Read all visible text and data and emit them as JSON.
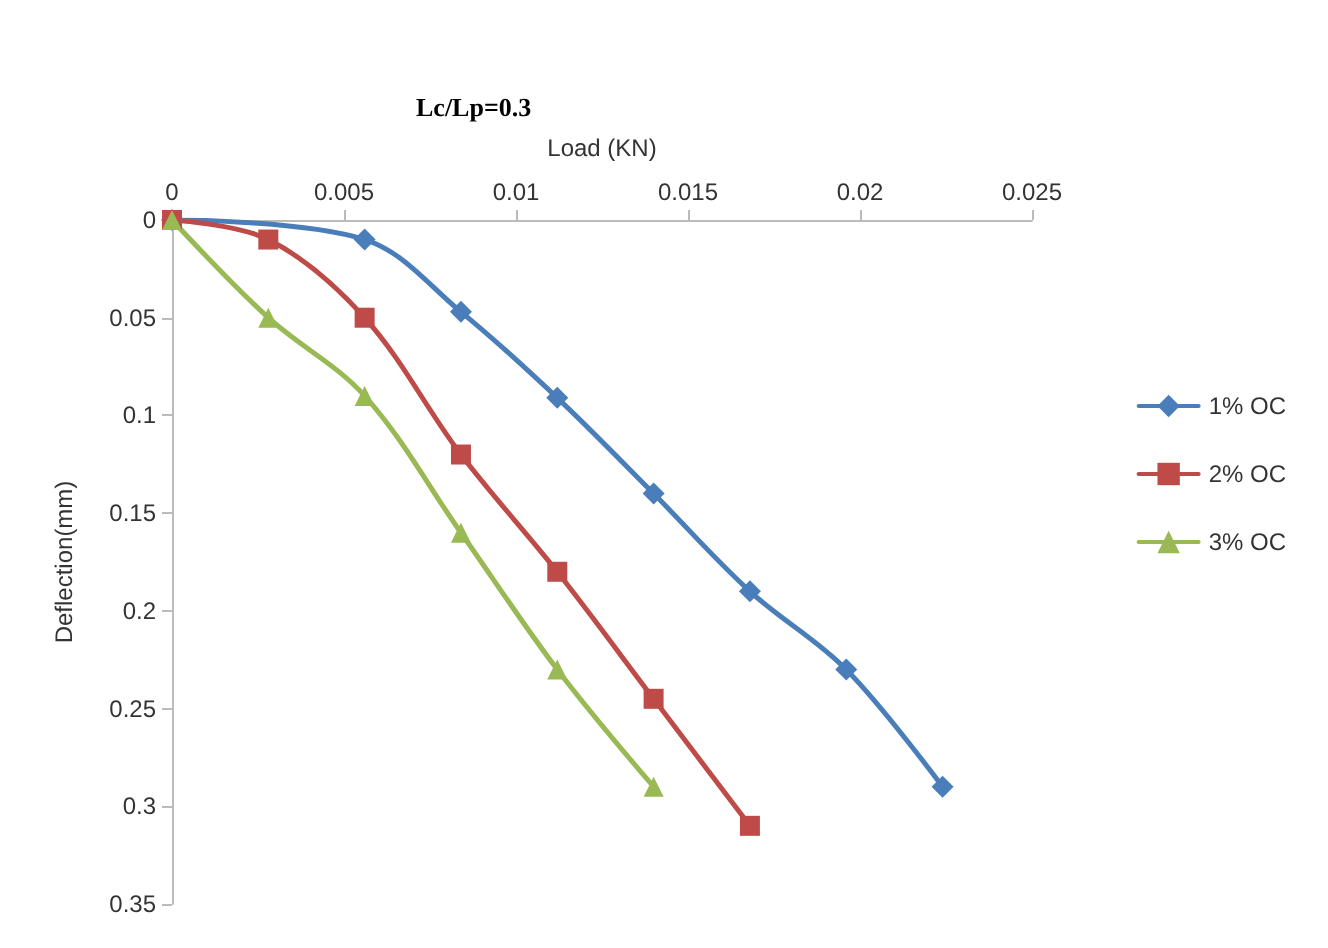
{
  "chart_data": {
    "type": "line",
    "title": "Lc/Lp=0.3",
    "xlabel": "Load (KN)",
    "ylabel": "Deflection(mm)",
    "xlim": [
      0,
      0.025
    ],
    "xticks": [
      0,
      0.005,
      0.01,
      0.015,
      0.02,
      0.025
    ],
    "ylim": [
      0.35,
      0
    ],
    "yticks": [
      0,
      0.05,
      0.1,
      0.15,
      0.2,
      0.25,
      0.3,
      0.35
    ],
    "grid": false,
    "legend": "right",
    "line_style": "solid",
    "series": [
      {
        "name": "1% OC",
        "color": "#4a7ebb",
        "marker": "diamond",
        "x": [
          0,
          0.0056,
          0.0084,
          0.0112,
          0.014,
          0.0168,
          0.0196,
          0.0224
        ],
        "values": [
          0,
          0.01,
          0.047,
          0.091,
          0.14,
          0.19,
          0.23,
          0.29
        ]
      },
      {
        "name": "2% OC",
        "color": "#be4b48",
        "marker": "square",
        "x": [
          0,
          0.0028,
          0.0056,
          0.0084,
          0.0112,
          0.014,
          0.0168
        ],
        "values": [
          0,
          0.01,
          0.05,
          0.12,
          0.18,
          0.245,
          0.31
        ]
      },
      {
        "name": "3% OC",
        "color": "#98b954",
        "marker": "triangle",
        "x": [
          0,
          0.0028,
          0.0056,
          0.0084,
          0.0112,
          0.014
        ],
        "values": [
          0,
          0.05,
          0.09,
          0.16,
          0.23,
          0.29
        ]
      }
    ]
  }
}
